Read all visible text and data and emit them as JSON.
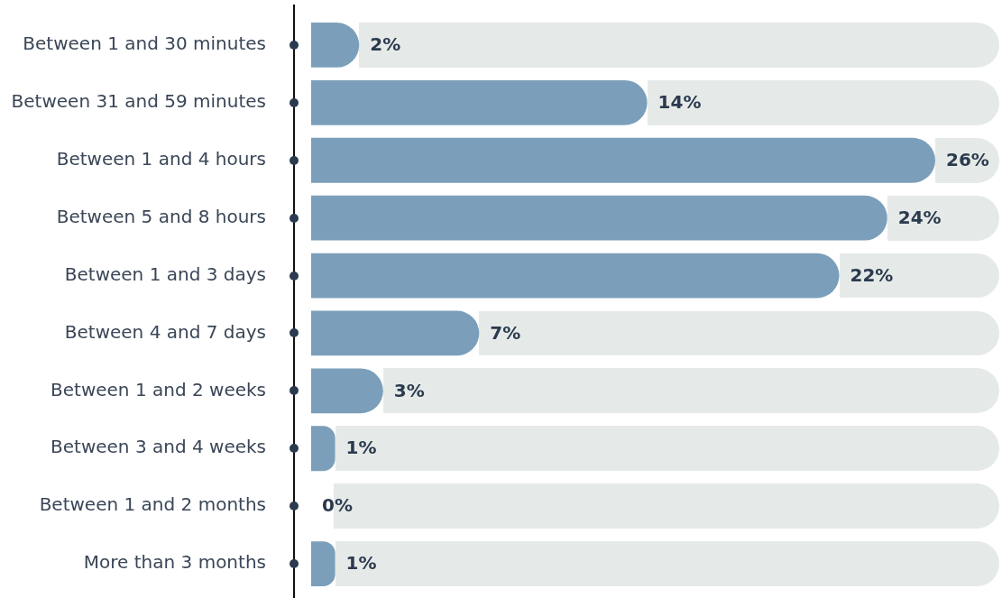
{
  "chart_data": {
    "type": "bar",
    "orientation": "horizontal",
    "categories": [
      "Between 1 and 30 minutes",
      "Between 31 and 59 minutes",
      "Between 1 and 4 hours",
      "Between 5 and 8 hours",
      "Between 1 and 3 days",
      "Between 4 and 7 days",
      "Between 1 and 2 weeks",
      "Between 3 and 4 weeks",
      "Between 1 and 2 months",
      "More than 3 months"
    ],
    "values": [
      2,
      14,
      26,
      24,
      22,
      7,
      3,
      1,
      0,
      1
    ],
    "value_labels": [
      "2%",
      "14%",
      "26%",
      "24%",
      "22%",
      "7%",
      "3%",
      "1%",
      "0%",
      "1%"
    ],
    "color": "#7b9fba"
  }
}
